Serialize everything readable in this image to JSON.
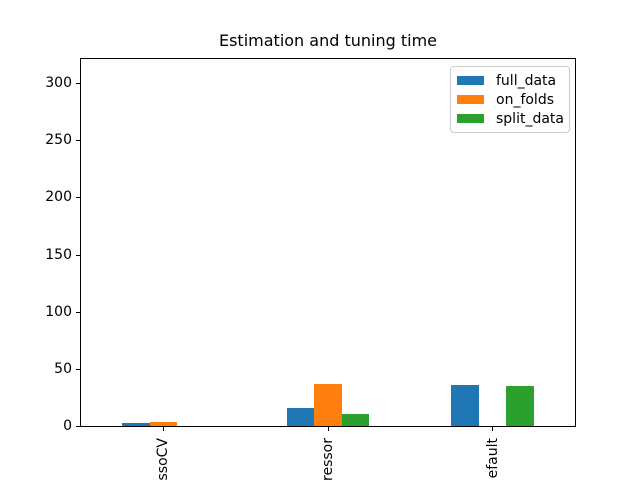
{
  "chart_data": {
    "type": "bar",
    "title": "Estimation and tuning time",
    "categories": [
      "ssoCV",
      "ressor",
      "efault"
    ],
    "series": [
      {
        "name": "full_data",
        "color": "#1f77b4",
        "values": [
          2.8,
          15.4,
          35.7
        ]
      },
      {
        "name": "on_folds",
        "color": "#ff7f0e",
        "values": [
          3.3,
          36.6,
          0
        ]
      },
      {
        "name": "split_data",
        "color": "#2ca02c",
        "values": [
          0,
          10.2,
          34.8
        ]
      }
    ],
    "xlabel": "",
    "ylabel": "",
    "ylim": [
      0,
      321
    ],
    "yticks": [
      0,
      50,
      100,
      150,
      200,
      250,
      300
    ],
    "grid": false,
    "legend_position": "upper right",
    "xticklabel_rotation": "vertical",
    "axis_color": "#000000",
    "legend_border_color": "#cccccc"
  }
}
